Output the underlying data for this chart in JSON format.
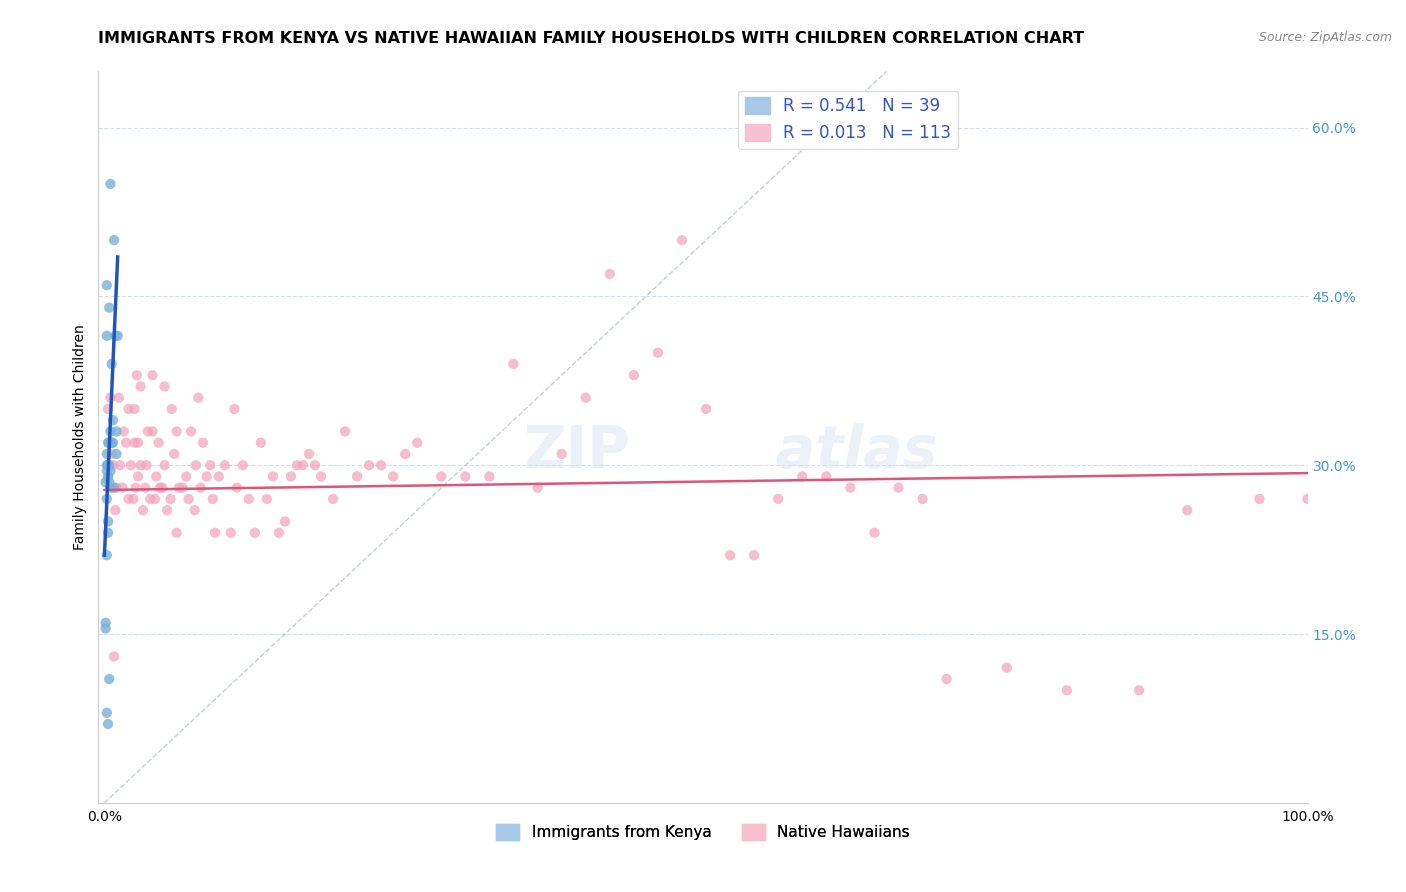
{
  "title": "IMMIGRANTS FROM KENYA VS NATIVE HAWAIIAN FAMILY HOUSEHOLDS WITH CHILDREN CORRELATION CHART",
  "source": "Source: ZipAtlas.com",
  "ylabel": "Family Households with Children",
  "yticks": [
    "15.0%",
    "30.0%",
    "45.0%",
    "60.0%"
  ],
  "ytick_vals": [
    0.15,
    0.3,
    0.45,
    0.6
  ],
  "legend_bottom": [
    "Immigrants from Kenya",
    "Native Hawaiians"
  ],
  "blue_scatter_x": [
    0.001,
    0.001,
    0.002,
    0.002,
    0.002,
    0.002,
    0.002,
    0.002,
    0.003,
    0.003,
    0.003,
    0.003,
    0.003,
    0.003,
    0.003,
    0.004,
    0.004,
    0.004,
    0.004,
    0.005,
    0.005,
    0.005,
    0.005,
    0.006,
    0.006,
    0.006,
    0.007,
    0.007,
    0.008,
    0.008,
    0.009,
    0.01,
    0.01,
    0.011,
    0.001,
    0.002,
    0.003,
    0.004,
    0.002
  ],
  "blue_scatter_y": [
    0.155,
    0.285,
    0.46,
    0.31,
    0.3,
    0.295,
    0.27,
    0.22,
    0.3,
    0.29,
    0.32,
    0.25,
    0.3,
    0.29,
    0.24,
    0.44,
    0.32,
    0.3,
    0.285,
    0.55,
    0.33,
    0.28,
    0.295,
    0.39,
    0.32,
    0.32,
    0.34,
    0.32,
    0.5,
    0.28,
    0.415,
    0.31,
    0.33,
    0.415,
    0.16,
    0.08,
    0.07,
    0.11,
    0.415
  ],
  "pink_scatter_x": [
    0.003,
    0.005,
    0.006,
    0.007,
    0.008,
    0.009,
    0.01,
    0.012,
    0.013,
    0.015,
    0.016,
    0.018,
    0.02,
    0.02,
    0.022,
    0.024,
    0.025,
    0.025,
    0.026,
    0.027,
    0.028,
    0.028,
    0.03,
    0.03,
    0.032,
    0.034,
    0.035,
    0.036,
    0.038,
    0.04,
    0.04,
    0.042,
    0.043,
    0.045,
    0.046,
    0.048,
    0.05,
    0.05,
    0.052,
    0.055,
    0.056,
    0.058,
    0.06,
    0.06,
    0.062,
    0.065,
    0.068,
    0.07,
    0.072,
    0.075,
    0.076,
    0.078,
    0.08,
    0.082,
    0.085,
    0.088,
    0.09,
    0.092,
    0.095,
    0.1,
    0.105,
    0.108,
    0.11,
    0.115,
    0.12,
    0.125,
    0.13,
    0.135,
    0.14,
    0.145,
    0.15,
    0.155,
    0.16,
    0.165,
    0.17,
    0.175,
    0.18,
    0.19,
    0.2,
    0.21,
    0.22,
    0.23,
    0.24,
    0.25,
    0.26,
    0.28,
    0.3,
    0.32,
    0.34,
    0.36,
    0.38,
    0.4,
    0.42,
    0.44,
    0.46,
    0.48,
    0.5,
    0.52,
    0.54,
    0.56,
    0.58,
    0.6,
    0.62,
    0.64,
    0.66,
    0.68,
    0.7,
    0.75,
    0.8,
    0.86,
    0.9,
    0.96,
    1.0
  ],
  "pink_scatter_y": [
    0.35,
    0.36,
    0.31,
    0.3,
    0.13,
    0.26,
    0.28,
    0.36,
    0.3,
    0.28,
    0.33,
    0.32,
    0.27,
    0.35,
    0.3,
    0.27,
    0.35,
    0.32,
    0.28,
    0.38,
    0.29,
    0.32,
    0.3,
    0.37,
    0.26,
    0.28,
    0.3,
    0.33,
    0.27,
    0.38,
    0.33,
    0.27,
    0.29,
    0.32,
    0.28,
    0.28,
    0.3,
    0.37,
    0.26,
    0.27,
    0.35,
    0.31,
    0.24,
    0.33,
    0.28,
    0.28,
    0.29,
    0.27,
    0.33,
    0.26,
    0.3,
    0.36,
    0.28,
    0.32,
    0.29,
    0.3,
    0.27,
    0.24,
    0.29,
    0.3,
    0.24,
    0.35,
    0.28,
    0.3,
    0.27,
    0.24,
    0.32,
    0.27,
    0.29,
    0.24,
    0.25,
    0.29,
    0.3,
    0.3,
    0.31,
    0.3,
    0.29,
    0.27,
    0.33,
    0.29,
    0.3,
    0.3,
    0.29,
    0.31,
    0.32,
    0.29,
    0.29,
    0.29,
    0.39,
    0.28,
    0.31,
    0.36,
    0.47,
    0.38,
    0.4,
    0.5,
    0.35,
    0.22,
    0.22,
    0.27,
    0.29,
    0.29,
    0.28,
    0.24,
    0.28,
    0.27,
    0.11,
    0.12,
    0.1,
    0.1,
    0.26,
    0.27,
    0.27
  ],
  "blue_line_x": [
    0.0,
    0.011
  ],
  "blue_line_y": [
    0.22,
    0.485
  ],
  "pink_line_x": [
    0.0,
    1.0
  ],
  "pink_line_y": [
    0.278,
    0.293
  ],
  "diagonal_line_x": [
    0.0,
    0.65
  ],
  "diagonal_line_y": [
    0.0,
    0.65
  ],
  "xlim": [
    -0.005,
    1.0
  ],
  "ylim": [
    0.0,
    0.65
  ],
  "scatter_size": 55,
  "blue_color": "#7ab0d8",
  "pink_color": "#f4a0b8",
  "blue_line_color": "#2255bb",
  "pink_line_color": "#dd5577",
  "diagonal_color": "#aabbcc",
  "watermark_text": "ZIP",
  "watermark_text2": "atlas",
  "title_fontsize": 11.5,
  "source_fontsize": 9,
  "legend_blue_label": "R = 0.541   N = 39",
  "legend_pink_label": "R = 0.013   N = 113",
  "legend_text_color": "#3355cc",
  "legend_blue_color": "#a8c8e8",
  "legend_pink_color": "#f8c0d0"
}
